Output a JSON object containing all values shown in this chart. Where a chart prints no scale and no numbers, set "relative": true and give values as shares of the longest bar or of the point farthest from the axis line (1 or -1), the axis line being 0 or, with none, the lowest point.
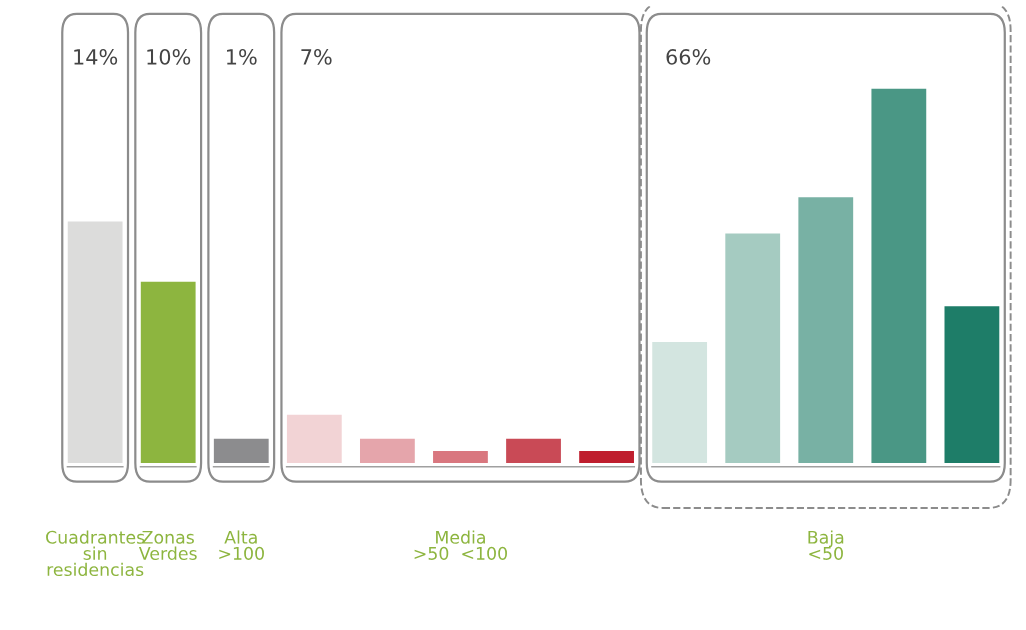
{
  "chart_data": {
    "type": "bar",
    "relative": true,
    "categories": [
      null,
      null,
      null,
      null,
      null,
      null,
      null,
      null,
      null,
      null,
      null,
      null,
      null
    ],
    "values": [
      0.645,
      0.484,
      0.065,
      0.129,
      0.065,
      0.032,
      0.065,
      0.032,
      0.323,
      0.613,
      0.71,
      1,
      0.419
    ],
    "colors": [
      "#dcdcdb",
      "#8db53f",
      "#8c8c8e",
      "#f2d3d5",
      "#e5a5ab",
      "#d9777f",
      "#c94a56",
      "#bf1e2e",
      "#d3e5e0",
      "#a5cbc1",
      "#78b1a4",
      "#4a9785",
      "#1e7d68"
    ],
    "annotations": [
      "14%",
      "10%",
      "1%",
      "7%",
      "66%",
      "Cuadrantes\nsin\nresidencias",
      "Zonas\nVerdes",
      "Alta\n>100",
      "Media\n>50  <100",
      "Baja\n<50"
    ],
    "legend": false
  }
}
